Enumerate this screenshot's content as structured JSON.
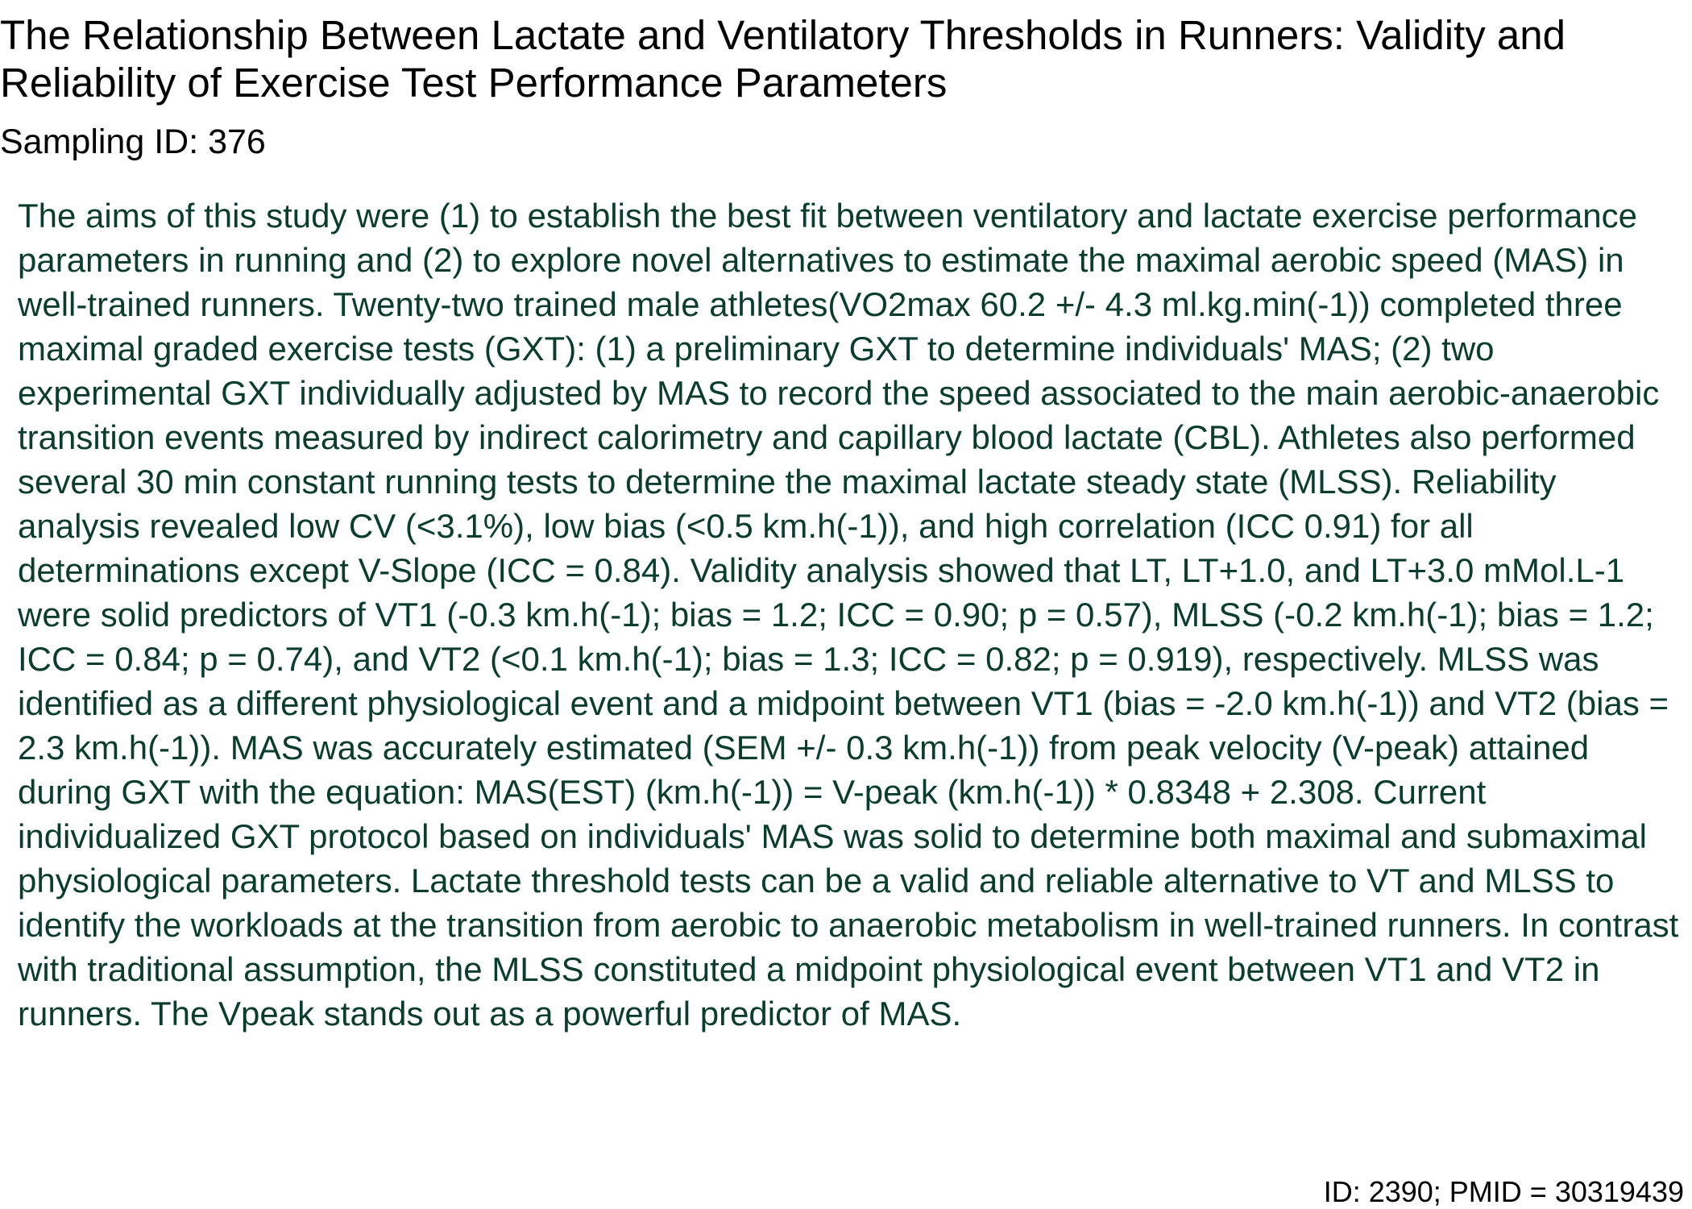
{
  "document": {
    "title": "The Relationship Between Lactate and Ventilatory Thresholds in Runners: Validity and Reliability of Exercise Test Performance Parameters",
    "sampling_id": "Sampling ID: 376",
    "abstract": "The aims of this study were (1) to establish the best fit between ventilatory and lactate exercise performance parameters in running and (2) to explore novel alternatives to estimate the maximal aerobic speed (MAS) in well-trained runners. Twenty-two trained male athletes(VO2max 60.2 +/- 4.3 ml.kg.min(-1)) completed three maximal graded exercise tests (GXT): (1) a preliminary GXT to determine individuals' MAS; (2) two experimental GXT individually adjusted by MAS to record the speed associated to the main aerobic-anaerobic transition events measured by indirect calorimetry and capillary blood lactate (CBL). Athletes also performed several 30 min constant running tests to determine the maximal lactate steady state (MLSS). Reliability analysis revealed low CV (<3.1%), low bias (<0.5 km.h(-1)), and high correlation (ICC 0.91) for all determinations except V-Slope (ICC = 0.84). Validity analysis showed that LT, LT+1.0, and LT+3.0 mMol.L-1 were solid predictors of VT1 (-0.3 km.h(-1); bias = 1.2; ICC = 0.90; p = 0.57), MLSS (-0.2 km.h(-1); bias = 1.2; ICC = 0.84; p = 0.74), and VT2 (<0.1 km.h(-1); bias = 1.3; ICC = 0.82; p = 0.919), respectively. MLSS was identified as a different physiological event and a midpoint between VT1 (bias = -2.0 km.h(-1)) and VT2 (bias = 2.3 km.h(-1)). MAS was accurately estimated (SEM +/- 0.3 km.h(-1)) from peak velocity (V-peak) attained during GXT with the equation: MAS(EST) (km.h(-1)) = V-peak (km.h(-1)) * 0.8348 + 2.308. Current individualized GXT protocol based on individuals' MAS was solid to determine both maximal and submaximal physiological parameters. Lactate threshold tests can be a valid and reliable alternative to VT and MLSS to identify the workloads at the transition from aerobic to anaerobic metabolism in well-trained runners. In contrast with traditional assumption, the MLSS constituted a midpoint physiological event between VT1 and VT2 in runners. The Vpeak stands out as a powerful predictor of MAS.",
    "footer_id": "ID: 2390; PMID = 30319439"
  },
  "colors": {
    "title_text": "#000000",
    "abstract_text": "#0b3d2c",
    "background": "#ffffff"
  }
}
